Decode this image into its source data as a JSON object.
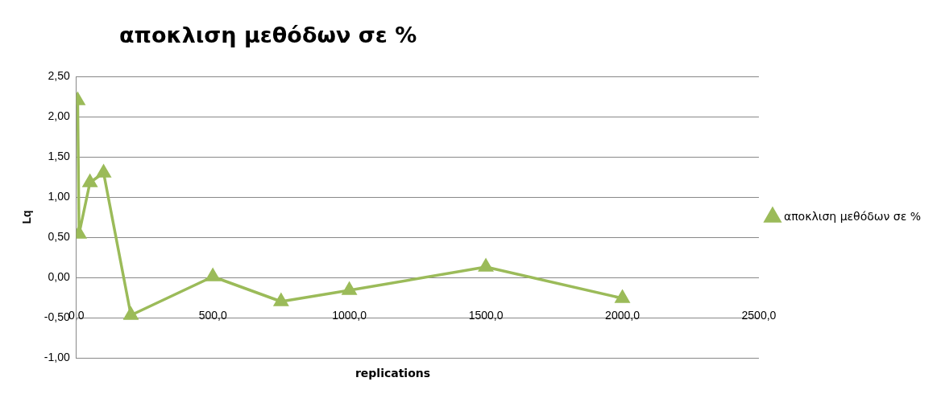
{
  "chart_data": {
    "type": "line",
    "title": "αποκλιση μεθόδων σε %",
    "xlabel": "replications",
    "ylabel": "Lq",
    "x": [
      5,
      10,
      50,
      100,
      200,
      500,
      750,
      1000,
      1500,
      2000
    ],
    "series": [
      {
        "name": "αποκλιση μεθόδων σε %",
        "color": "#9bbb59",
        "values": [
          2.2,
          0.54,
          1.18,
          1.3,
          -0.47,
          0.01,
          -0.3,
          -0.16,
          0.13,
          -0.26
        ]
      }
    ],
    "xlim": [
      0,
      2500
    ],
    "xticks": [
      {
        "value": 0,
        "label": "0,0"
      },
      {
        "value": 500,
        "label": "500,0"
      },
      {
        "value": 1000,
        "label": "1000,0"
      },
      {
        "value": 1500,
        "label": "1500,0"
      },
      {
        "value": 2000,
        "label": "2000,0"
      },
      {
        "value": 2500,
        "label": "2500,0"
      }
    ],
    "ylim": [
      -1,
      2.5
    ],
    "yticks": [
      {
        "value": -1,
        "label": "-1,00"
      },
      {
        "value": -0.5,
        "label": "-0,50"
      },
      {
        "value": 0,
        "label": "0,00"
      },
      {
        "value": 0.5,
        "label": "0,50"
      },
      {
        "value": 1,
        "label": "1,00"
      },
      {
        "value": 1.5,
        "label": "1,50"
      },
      {
        "value": 2,
        "label": "2,00"
      },
      {
        "value": 2.5,
        "label": "2,50"
      }
    ],
    "grid": "y",
    "legend": "right",
    "marker": "triangle",
    "line_style": "solid"
  }
}
